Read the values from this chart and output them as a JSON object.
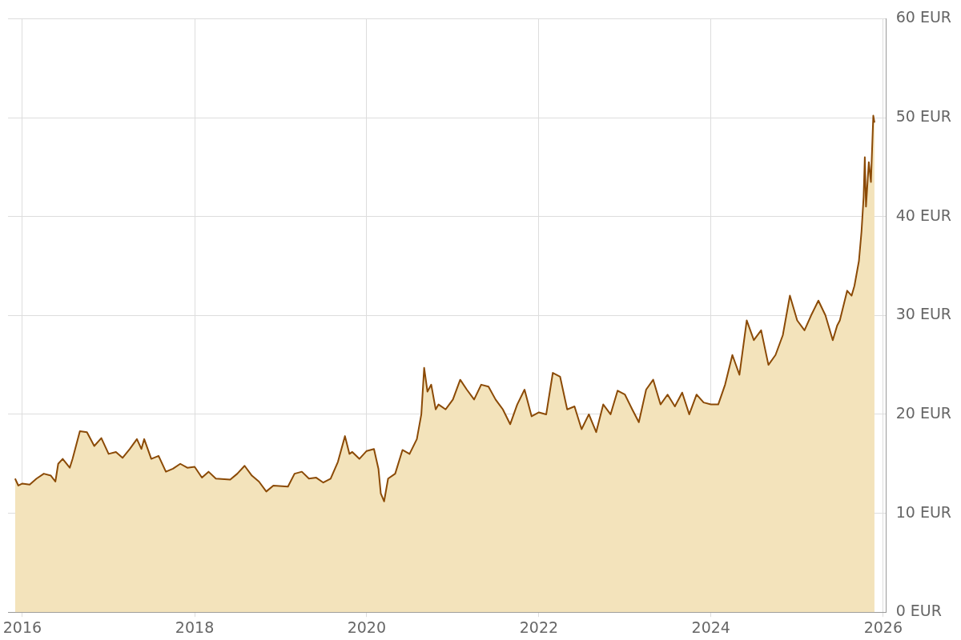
{
  "chart_data": {
    "type": "area",
    "x": [
      "2015-12-01",
      "2015-12-15",
      "2016-01-01",
      "2016-02-01",
      "2016-03-01",
      "2016-04-01",
      "2016-05-01",
      "2016-05-20",
      "2016-06-01",
      "2016-06-20",
      "2016-07-20",
      "2016-08-01",
      "2016-09-01",
      "2016-10-01",
      "2016-11-01",
      "2016-12-01",
      "2017-01-01",
      "2017-02-01",
      "2017-03-01",
      "2017-04-01",
      "2017-05-01",
      "2017-05-20",
      "2017-06-01",
      "2017-07-01",
      "2017-08-01",
      "2017-09-01",
      "2017-10-01",
      "2017-11-01",
      "2017-12-01",
      "2018-01-01",
      "2018-02-01",
      "2018-03-01",
      "2018-04-01",
      "2018-06-01",
      "2018-07-01",
      "2018-08-01",
      "2018-09-01",
      "2018-10-01",
      "2018-11-01",
      "2018-12-01",
      "2019-02-01",
      "2019-03-01",
      "2019-04-01",
      "2019-05-01",
      "2019-06-01",
      "2019-07-01",
      "2019-08-01",
      "2019-09-01",
      "2019-10-01",
      "2019-10-20",
      "2019-11-01",
      "2019-12-01",
      "2020-01-01",
      "2020-02-01",
      "2020-02-20",
      "2020-03-01",
      "2020-03-15",
      "2020-04-01",
      "2020-05-01",
      "2020-06-01",
      "2020-07-01",
      "2020-08-01",
      "2020-08-20",
      "2020-09-01",
      "2020-09-15",
      "2020-10-01",
      "2020-10-20",
      "2020-11-01",
      "2020-12-01",
      "2021-01-01",
      "2021-02-01",
      "2021-03-01",
      "2021-04-01",
      "2021-05-01",
      "2021-06-01",
      "2021-07-01",
      "2021-08-01",
      "2021-09-01",
      "2021-10-01",
      "2021-11-01",
      "2021-12-01",
      "2022-01-01",
      "2022-02-01",
      "2022-03-01",
      "2022-04-01",
      "2022-05-01",
      "2022-06-01",
      "2022-07-01",
      "2022-08-01",
      "2022-09-01",
      "2022-10-01",
      "2022-11-01",
      "2022-12-01",
      "2023-01-01",
      "2023-02-01",
      "2023-03-01",
      "2023-04-01",
      "2023-05-01",
      "2023-06-01",
      "2023-07-01",
      "2023-08-01",
      "2023-09-01",
      "2023-10-01",
      "2023-11-01",
      "2023-12-01",
      "2024-01-01",
      "2024-02-01",
      "2024-03-01",
      "2024-04-01",
      "2024-05-01",
      "2024-06-01",
      "2024-07-01",
      "2024-08-01",
      "2024-09-01",
      "2024-10-01",
      "2024-11-01",
      "2024-12-01",
      "2025-01-01",
      "2025-02-01",
      "2025-03-01",
      "2025-04-01",
      "2025-05-01",
      "2025-06-01",
      "2025-06-20",
      "2025-07-01",
      "2025-08-01",
      "2025-08-20",
      "2025-09-01",
      "2025-09-20",
      "2025-10-01",
      "2025-10-10",
      "2025-10-15",
      "2025-10-20",
      "2025-11-01",
      "2025-11-10",
      "2025-11-20",
      "2025-11-25"
    ],
    "series": [
      {
        "color": "#8b4a06",
        "values": [
          13.5,
          12.8,
          13.0,
          12.9,
          13.5,
          14.0,
          13.8,
          13.2,
          15.0,
          15.5,
          14.6,
          15.5,
          18.3,
          18.2,
          16.8,
          17.6,
          16.0,
          16.2,
          15.6,
          16.5,
          17.5,
          16.5,
          17.5,
          15.5,
          15.8,
          14.2,
          14.5,
          15.0,
          14.6,
          14.7,
          13.6,
          14.2,
          13.5,
          13.4,
          14.0,
          14.8,
          13.8,
          13.2,
          12.2,
          12.8,
          12.7,
          14.0,
          14.2,
          13.5,
          13.6,
          13.1,
          13.5,
          15.2,
          17.8,
          16.0,
          16.2,
          15.5,
          16.3,
          16.5,
          14.5,
          12.0,
          11.2,
          13.5,
          14.0,
          16.4,
          16.0,
          17.5,
          20.0,
          24.7,
          22.3,
          23.0,
          20.5,
          21.0,
          20.5,
          21.5,
          23.5,
          22.5,
          21.5,
          23.0,
          22.8,
          21.5,
          20.5,
          19.0,
          21.0,
          22.5,
          19.8,
          20.2,
          20.0,
          24.2,
          23.8,
          20.5,
          20.8,
          18.5,
          20.0,
          18.2,
          21.0,
          20.0,
          22.4,
          22.0,
          20.5,
          19.2,
          22.5,
          23.5,
          21.0,
          22.0,
          20.8,
          22.2,
          20.0,
          22.0,
          21.2,
          21.0,
          21.0,
          23.0,
          26.0,
          24.0,
          29.5,
          27.5,
          28.5,
          25.0,
          26.0,
          28.0,
          32.0,
          29.5,
          28.5,
          30.0,
          31.5,
          30.0,
          27.5,
          29.0,
          29.5,
          32.5,
          32.0,
          33.0,
          35.5,
          38.5,
          42.0,
          46.0,
          41.0,
          45.5,
          43.5,
          50.2,
          49.5
        ]
      }
    ],
    "xlim": [
      "2015-11-01",
      "2026-01-14"
    ],
    "xticks": [
      {
        "value": "2016",
        "label": "2016"
      },
      {
        "value": "2018",
        "label": "2018"
      },
      {
        "value": "2020",
        "label": "2020"
      },
      {
        "value": "2022",
        "label": "2022"
      },
      {
        "value": "2024",
        "label": "2024"
      },
      {
        "value": "2026",
        "label": "2026"
      }
    ],
    "ylim": [
      0,
      60
    ],
    "yticks": [
      {
        "value": 0,
        "label": "0 EUR"
      },
      {
        "value": 10,
        "label": "10 EUR"
      },
      {
        "value": 20,
        "label": "20 EUR"
      },
      {
        "value": 30,
        "label": "30 EUR"
      },
      {
        "value": 40,
        "label": "40 EUR"
      },
      {
        "value": 50,
        "label": "50 EUR"
      },
      {
        "value": 60,
        "label": "60 EUR"
      }
    ],
    "grid": true
  }
}
